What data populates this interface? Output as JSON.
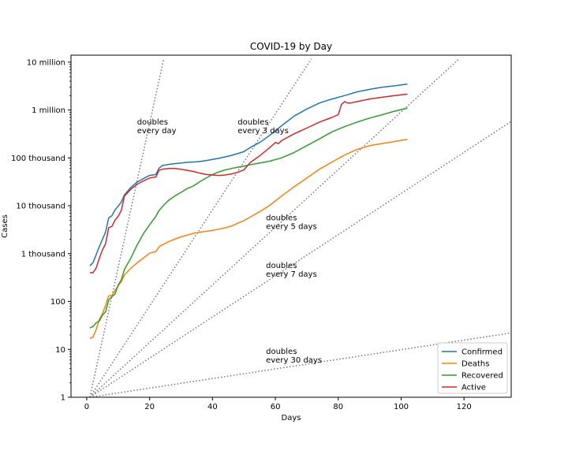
{
  "chart_data": {
    "type": "line",
    "title": "COVID-19 by Day",
    "xlabel": "Days",
    "ylabel": "Cases",
    "yscale": "log",
    "xlim": [
      -5,
      135
    ],
    "ylim": [
      1,
      14000000
    ],
    "x_ticks": [
      0,
      20,
      40,
      60,
      80,
      100,
      120
    ],
    "y_ticks": [
      {
        "value": 1,
        "label": "1"
      },
      {
        "value": 10,
        "label": "10"
      },
      {
        "value": 100,
        "label": "100"
      },
      {
        "value": 1000,
        "label": "1 thousand"
      },
      {
        "value": 10000,
        "label": "10 thousand"
      },
      {
        "value": 100000,
        "label": "100 thousand"
      },
      {
        "value": 1000000,
        "label": "1 million"
      },
      {
        "value": 10000000,
        "label": "10 million"
      }
    ],
    "grid": false,
    "legend_position": "bottom-right",
    "series": [
      {
        "name": "Confirmed",
        "color": "#1f77b4",
        "x": [
          1,
          2,
          3,
          4,
          5,
          6,
          7,
          8,
          9,
          10,
          11,
          12,
          14,
          16,
          18,
          20,
          22,
          23,
          24,
          26,
          28,
          30,
          32,
          34,
          36,
          38,
          40,
          42,
          44,
          46,
          48,
          50,
          52,
          55,
          58,
          62,
          66,
          70,
          74,
          78,
          82,
          86,
          90,
          94,
          98,
          102
        ],
        "y": [
          555,
          650,
          950,
          1400,
          2000,
          2800,
          5600,
          6200,
          8200,
          9800,
          12000,
          17000,
          24000,
          31000,
          37000,
          43000,
          45000,
          61000,
          69000,
          73000,
          76000,
          78000,
          81000,
          82000,
          84000,
          88000,
          93000,
          98000,
          105000,
          113000,
          123000,
          135000,
          165000,
          210000,
          290000,
          470000,
          750000,
          1050000,
          1400000,
          1700000,
          2000000,
          2400000,
          2700000,
          3000000,
          3200000,
          3500000
        ]
      },
      {
        "name": "Deaths",
        "color": "#ff7f0e",
        "x": [
          1,
          2,
          3,
          4,
          5,
          6,
          7,
          8,
          9,
          10,
          11,
          12,
          14,
          16,
          18,
          20,
          22,
          23,
          24,
          26,
          28,
          30,
          32,
          34,
          36,
          38,
          40,
          42,
          44,
          46,
          48,
          50,
          52,
          55,
          58,
          62,
          66,
          70,
          74,
          78,
          82,
          86,
          90,
          94,
          98,
          102
        ],
        "y": [
          17,
          18,
          26,
          42,
          56,
          82,
          131,
          133,
          171,
          213,
          259,
          362,
          490,
          640,
          810,
          1020,
          1110,
          1380,
          1520,
          1770,
          2000,
          2240,
          2450,
          2660,
          2800,
          2920,
          3050,
          3250,
          3450,
          3750,
          4300,
          4900,
          5800,
          7500,
          10000,
          16000,
          25000,
          38000,
          58000,
          82000,
          115000,
          150000,
          180000,
          200000,
          220000,
          245000
        ]
      },
      {
        "name": "Recovered",
        "color": "#2ca02c",
        "x": [
          1,
          2,
          3,
          4,
          5,
          6,
          7,
          8,
          9,
          10,
          11,
          12,
          14,
          16,
          18,
          20,
          22,
          23,
          24,
          26,
          28,
          30,
          31,
          32,
          34,
          36,
          38,
          40,
          42,
          44,
          46,
          48,
          50,
          52,
          55,
          58,
          62,
          66,
          70,
          74,
          78,
          82,
          86,
          90,
          94,
          98,
          102
        ],
        "y": [
          28,
          30,
          36,
          39,
          52,
          61,
          107,
          126,
          143,
          222,
          284,
          472,
          800,
          1500,
          2600,
          4000,
          6000,
          8000,
          9500,
          13000,
          16000,
          19000,
          21000,
          23000,
          26000,
          32000,
          38000,
          45000,
          51000,
          56000,
          60000,
          64000,
          67000,
          72000,
          78000,
          85000,
          100000,
          130000,
          180000,
          250000,
          350000,
          450000,
          560000,
          680000,
          800000,
          950000,
          1100000
        ]
      },
      {
        "name": "Active",
        "color": "#d62728",
        "x": [
          1,
          2,
          3,
          4,
          5,
          6,
          7,
          8,
          9,
          10,
          11,
          12,
          14,
          16,
          18,
          20,
          22,
          23,
          24,
          26,
          28,
          30,
          32,
          34,
          36,
          38,
          40,
          42,
          44,
          46,
          48,
          50,
          52,
          55,
          58,
          60,
          61,
          62,
          66,
          70,
          74,
          78,
          80,
          81,
          82,
          83,
          84,
          86,
          90,
          94,
          98,
          102
        ],
        "y": [
          400,
          400,
          500,
          800,
          1200,
          1600,
          3500,
          3700,
          5000,
          6000,
          8000,
          16000,
          22000,
          28000,
          33000,
          38000,
          40000,
          55000,
          58000,
          60000,
          60000,
          58000,
          55000,
          52000,
          48000,
          45000,
          44000,
          43000,
          44000,
          46000,
          50000,
          56000,
          80000,
          110000,
          160000,
          210000,
          200000,
          230000,
          320000,
          420000,
          560000,
          700000,
          800000,
          1300000,
          1500000,
          1400000,
          1400000,
          1500000,
          1700000,
          1850000,
          2000000,
          2150000
        ]
      }
    ],
    "reference_lines": [
      {
        "label": "doubles\nevery day",
        "doubling_days": 1,
        "label_x": 16,
        "label_y": 500000
      },
      {
        "label": "doubles\nevery 3 days",
        "doubling_days": 3,
        "label_x": 48,
        "label_y": 500000
      },
      {
        "label": "doubles\nevery 5 days",
        "doubling_days": 5,
        "label_x": 57,
        "label_y": 5000
      },
      {
        "label": "doubles\nevery 7 days",
        "doubling_days": 7,
        "label_x": 57,
        "label_y": 500
      },
      {
        "label": "doubles\nevery 30 days",
        "doubling_days": 30,
        "label_x": 57,
        "label_y": 8
      }
    ]
  }
}
